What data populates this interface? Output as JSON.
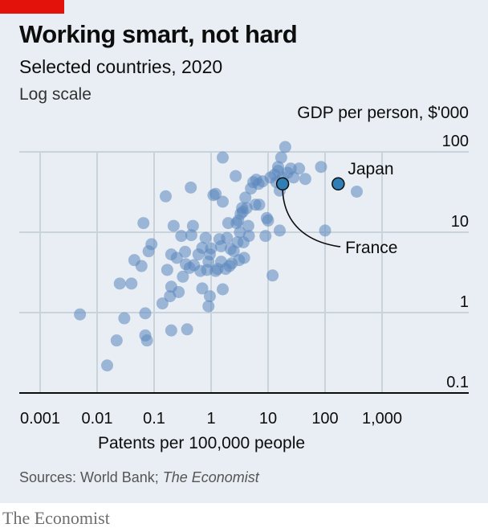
{
  "header": {
    "title": "Working smart, not hard",
    "subtitle": "Selected countries, 2020",
    "scale_note": "Log scale"
  },
  "source": {
    "prefix": "Sources: World Bank; ",
    "publication": "The Economist"
  },
  "brand": "The Economist",
  "colors": {
    "accent": "#e3120b",
    "panel": "#e8eef3",
    "dot": "#5b86bd",
    "highlight": "#2f7fb6",
    "grid": "#c9d3db",
    "axis": "#0d0d0d"
  },
  "chart_data": {
    "type": "scatter",
    "title": "Working smart, not hard",
    "subtitle": "Selected countries, 2020",
    "xlabel": "Patents per 100,000 people",
    "ylabel": "GDP per person, $'000",
    "x_scale": "log",
    "y_scale": "log",
    "xlim": [
      0.001,
      1000
    ],
    "ylim": [
      0.1,
      100
    ],
    "x_ticks": [
      0.001,
      0.01,
      0.1,
      1,
      10,
      100,
      1000
    ],
    "x_tick_labels": [
      "0.001",
      "0.01",
      "0.1",
      "1",
      "10",
      "100",
      "1,000"
    ],
    "y_ticks": [
      0.1,
      1,
      10,
      100
    ],
    "y_tick_labels": [
      "0.1",
      "1",
      "10",
      "100"
    ],
    "grid": true,
    "annotations": [
      {
        "label": "Japan",
        "x": 170,
        "y": 40
      },
      {
        "label": "France",
        "x": 18,
        "y": 40
      }
    ],
    "points": [
      [
        0.005,
        0.95
      ],
      [
        0.015,
        0.22
      ],
      [
        0.022,
        0.45
      ],
      [
        0.025,
        2.3
      ],
      [
        0.03,
        0.85
      ],
      [
        0.04,
        2.3
      ],
      [
        0.045,
        4.5
      ],
      [
        0.06,
        3.8
      ],
      [
        0.065,
        13
      ],
      [
        0.07,
        0.52
      ],
      [
        0.07,
        0.98
      ],
      [
        0.075,
        0.45
      ],
      [
        0.08,
        5.8
      ],
      [
        0.09,
        7.1
      ],
      [
        0.14,
        1.3
      ],
      [
        0.16,
        28
      ],
      [
        0.17,
        3.4
      ],
      [
        0.19,
        1.6
      ],
      [
        0.2,
        0.6
      ],
      [
        0.2,
        2.1
      ],
      [
        0.2,
        5.3
      ],
      [
        0.22,
        12
      ],
      [
        0.25,
        4.8
      ],
      [
        0.27,
        1.8
      ],
      [
        0.3,
        9
      ],
      [
        0.32,
        2.8
      ],
      [
        0.35,
        5.7
      ],
      [
        0.36,
        4
      ],
      [
        0.38,
        0.62
      ],
      [
        0.42,
        3.6
      ],
      [
        0.44,
        36
      ],
      [
        0.45,
        9.2
      ],
      [
        0.48,
        12
      ],
      [
        0.5,
        3.9
      ],
      [
        0.6,
        5.3
      ],
      [
        0.65,
        3.3
      ],
      [
        0.7,
        2
      ],
      [
        0.7,
        6.4
      ],
      [
        0.8,
        8.5
      ],
      [
        0.85,
        3.4
      ],
      [
        0.9,
        1.2
      ],
      [
        0.9,
        4.3
      ],
      [
        0.95,
        5.3
      ],
      [
        0.95,
        1.6
      ],
      [
        1,
        6.3
      ],
      [
        1.1,
        29
      ],
      [
        1.2,
        30
      ],
      [
        1.2,
        3.3
      ],
      [
        1.3,
        3.5
      ],
      [
        1.4,
        8.2
      ],
      [
        1.5,
        6.7
      ],
      [
        1.5,
        4.3
      ],
      [
        1.6,
        1.95
      ],
      [
        1.6,
        85
      ],
      [
        1.6,
        24
      ],
      [
        1.8,
        3.5
      ],
      [
        1.9,
        8.5
      ],
      [
        2,
        13
      ],
      [
        2.1,
        3.8
      ],
      [
        2.2,
        6.2
      ],
      [
        2.3,
        4.1
      ],
      [
        2.5,
        5.8
      ],
      [
        2.7,
        50
      ],
      [
        2.8,
        13
      ],
      [
        2.9,
        7.5
      ],
      [
        3,
        14
      ],
      [
        3.1,
        4.5
      ],
      [
        3.2,
        10
      ],
      [
        3.3,
        17
      ],
      [
        3.5,
        20
      ],
      [
        3.6,
        18
      ],
      [
        3.7,
        7.5
      ],
      [
        3.8,
        4.8
      ],
      [
        4,
        27
      ],
      [
        4.2,
        20
      ],
      [
        4.5,
        12
      ],
      [
        4.6,
        9
      ],
      [
        5,
        35
      ],
      [
        5.5,
        42
      ],
      [
        6,
        22
      ],
      [
        6.2,
        45
      ],
      [
        6.8,
        40
      ],
      [
        7,
        22
      ],
      [
        8,
        43
      ],
      [
        9,
        9
      ],
      [
        9.5,
        15
      ],
      [
        10,
        14
      ],
      [
        11,
        48
      ],
      [
        12,
        2.9
      ],
      [
        13,
        52
      ],
      [
        14,
        42
      ],
      [
        15,
        65
      ],
      [
        15,
        58
      ],
      [
        16,
        33
      ],
      [
        16,
        10.5
      ],
      [
        17,
        85
      ],
      [
        18,
        48
      ],
      [
        20,
        115
      ],
      [
        22,
        55
      ],
      [
        25,
        62
      ],
      [
        28,
        48
      ],
      [
        35,
        62
      ],
      [
        45,
        46
      ],
      [
        85,
        65
      ],
      [
        100,
        10.5
      ],
      [
        360,
        32
      ]
    ],
    "highlights": [
      {
        "name": "Japan",
        "x": 170,
        "y": 40
      },
      {
        "name": "France",
        "x": 18,
        "y": 40
      }
    ]
  }
}
